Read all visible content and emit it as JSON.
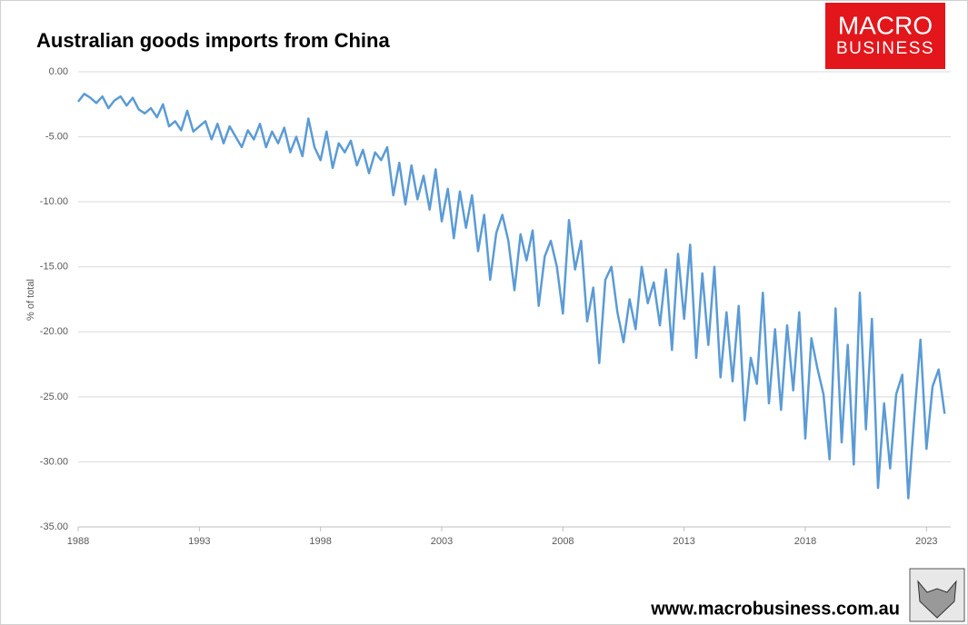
{
  "chart_data": {
    "type": "line",
    "title": "Australian goods imports from China",
    "ylabel": "% of total",
    "logo_lines": [
      "MACRO",
      "BUSINESS"
    ],
    "website": "www.macrobusiness.com.au",
    "color": "#5b9bd5",
    "xlim": [
      1988,
      2024
    ],
    "xticks": [
      1988,
      1993,
      1998,
      2003,
      2008,
      2013,
      2018,
      2023
    ],
    "ylim": [
      -35,
      0
    ],
    "yticks": [
      {
        "value": 0,
        "label": "0.00"
      },
      {
        "value": -5,
        "label": "-5.00"
      },
      {
        "value": -10,
        "label": "-10.00"
      },
      {
        "value": -15,
        "label": "-15.00"
      },
      {
        "value": -20,
        "label": "-20.00"
      },
      {
        "value": -25,
        "label": "-25.00"
      },
      {
        "value": -30,
        "label": "-30.00"
      },
      {
        "value": -35,
        "label": "-35.00"
      }
    ],
    "grid": true,
    "x": [
      1988,
      1988.25,
      1988.5,
      1988.75,
      1989,
      1989.25,
      1989.5,
      1989.75,
      1990,
      1990.25,
      1990.5,
      1990.75,
      1991,
      1991.25,
      1991.5,
      1991.75,
      1992,
      1992.25,
      1992.5,
      1992.75,
      1993,
      1993.25,
      1993.5,
      1993.75,
      1994,
      1994.25,
      1994.5,
      1994.75,
      1995,
      1995.25,
      1995.5,
      1995.75,
      1996,
      1996.25,
      1996.5,
      1996.75,
      1997,
      1997.25,
      1997.5,
      1997.75,
      1998,
      1998.25,
      1998.5,
      1998.75,
      1999,
      1999.25,
      1999.5,
      1999.75,
      2000,
      2000.25,
      2000.5,
      2000.75,
      2001,
      2001.25,
      2001.5,
      2001.75,
      2002,
      2002.25,
      2002.5,
      2002.75,
      2003,
      2003.25,
      2003.5,
      2003.75,
      2004,
      2004.25,
      2004.5,
      2004.75,
      2005,
      2005.25,
      2005.5,
      2005.75,
      2006,
      2006.25,
      2006.5,
      2006.75,
      2007,
      2007.25,
      2007.5,
      2007.75,
      2008,
      2008.25,
      2008.5,
      2008.75,
      2009,
      2009.25,
      2009.5,
      2009.75,
      2010,
      2010.25,
      2010.5,
      2010.75,
      2011,
      2011.25,
      2011.5,
      2011.75,
      2012,
      2012.25,
      2012.5,
      2012.75,
      2013,
      2013.25,
      2013.5,
      2013.75,
      2014,
      2014.25,
      2014.5,
      2014.75,
      2015,
      2015.25,
      2015.5,
      2015.75,
      2016,
      2016.25,
      2016.5,
      2016.75,
      2017,
      2017.25,
      2017.5,
      2017.75,
      2018,
      2018.25,
      2018.5,
      2018.75,
      2019,
      2019.25,
      2019.5,
      2019.75,
      2020,
      2020.25,
      2020.5,
      2020.75,
      2021,
      2021.25,
      2021.5,
      2021.75,
      2022,
      2022.25,
      2022.5,
      2022.75,
      2023,
      2023.25,
      2023.5,
      2023.75
    ],
    "values": [
      -2.3,
      -1.7,
      -2.0,
      -2.4,
      -1.9,
      -2.8,
      -2.2,
      -1.9,
      -2.6,
      -2.0,
      -2.9,
      -3.2,
      -2.8,
      -3.5,
      -2.5,
      -4.2,
      -3.8,
      -4.5,
      -3.0,
      -4.6,
      -4.2,
      -3.8,
      -5.2,
      -4.0,
      -5.5,
      -4.2,
      -5.0,
      -5.8,
      -4.5,
      -5.2,
      -4.0,
      -5.8,
      -4.6,
      -5.5,
      -4.3,
      -6.2,
      -5.0,
      -6.5,
      -3.6,
      -5.8,
      -6.8,
      -4.6,
      -7.4,
      -5.5,
      -6.2,
      -5.3,
      -7.2,
      -6.0,
      -7.8,
      -6.2,
      -6.8,
      -5.8,
      -9.5,
      -7.0,
      -10.2,
      -7.2,
      -9.8,
      -8.0,
      -10.6,
      -7.5,
      -11.5,
      -9.0,
      -12.8,
      -9.2,
      -12.0,
      -9.5,
      -13.8,
      -11.0,
      -16.0,
      -12.4,
      -11.0,
      -13.0,
      -16.8,
      -12.5,
      -14.5,
      -12.2,
      -18.0,
      -14.2,
      -13.0,
      -15.0,
      -18.6,
      -11.4,
      -15.2,
      -13.0,
      -19.2,
      -16.6,
      -22.4,
      -16.0,
      -15.0,
      -18.5,
      -20.8,
      -17.5,
      -19.8,
      -15.0,
      -17.8,
      -16.2,
      -19.5,
      -15.2,
      -21.4,
      -14.0,
      -19.0,
      -13.3,
      -22.0,
      -15.5,
      -21.0,
      -15.0,
      -23.5,
      -18.5,
      -23.8,
      -18.0,
      -26.8,
      -22.0,
      -24.0,
      -17.0,
      -25.5,
      -19.8,
      -26.0,
      -19.5,
      -24.5,
      -18.5,
      -28.2,
      -20.5,
      -22.8,
      -24.8,
      -29.8,
      -18.2,
      -28.5,
      -21.0,
      -30.2,
      -17.0,
      -27.5,
      -19.0,
      -32.0,
      -25.5,
      -30.5,
      -24.8,
      -23.3,
      -32.8,
      -26.5,
      -20.6,
      -29.0,
      -24.2,
      -22.9,
      -26.3
    ]
  }
}
